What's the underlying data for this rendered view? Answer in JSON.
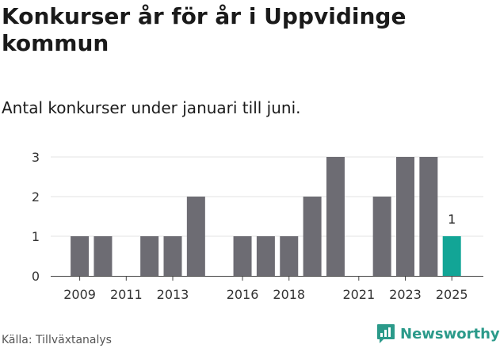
{
  "title": "Konkurser år för år i Uppvidinge kommun",
  "subtitle": "Antal konkurser under januari till juni.",
  "source": "Källa: Tillväxtanalys",
  "brand": "Newsworthy",
  "colors": {
    "bar": "#6d6c73",
    "highlight": "#12a596",
    "grid": "#e3e3e3",
    "brand": "#2b9a8a"
  },
  "icons": {
    "brand": "newsworthy-logo-icon"
  },
  "chart_data": {
    "type": "bar",
    "categories": [
      "2009",
      "2010",
      "2011",
      "2012",
      "2013",
      "2014",
      "2015",
      "2016",
      "2017",
      "2018",
      "2019",
      "2020",
      "2021",
      "2022",
      "2023",
      "2024",
      "2025"
    ],
    "values": [
      1,
      1,
      0,
      1,
      1,
      2,
      0,
      1,
      1,
      1,
      2,
      3,
      0,
      2,
      3,
      3,
      1
    ],
    "x_tick_labels": [
      "2009",
      "2011",
      "2013",
      "2016",
      "2018",
      "2021",
      "2023",
      "2025"
    ],
    "y_ticks": [
      0,
      1,
      2,
      3
    ],
    "ylim": [
      0,
      3
    ],
    "highlight_category": "2025",
    "data_labels": [
      {
        "category": "2025",
        "value": "1"
      }
    ],
    "grid": true,
    "xlabel": "",
    "ylabel": ""
  }
}
